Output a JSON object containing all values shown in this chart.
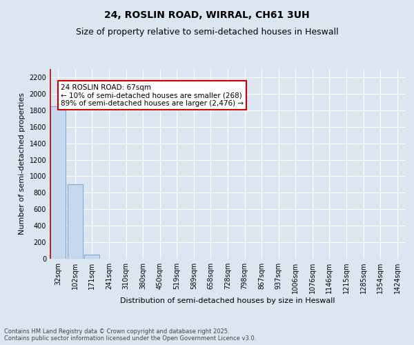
{
  "title_line1": "24, ROSLIN ROAD, WIRRAL, CH61 3UH",
  "title_line2": "Size of property relative to semi-detached houses in Heswall",
  "xlabel": "Distribution of semi-detached houses by size in Heswall",
  "ylabel": "Number of semi-detached properties",
  "categories": [
    "32sqm",
    "102sqm",
    "171sqm",
    "241sqm",
    "310sqm",
    "380sqm",
    "450sqm",
    "519sqm",
    "589sqm",
    "658sqm",
    "728sqm",
    "798sqm",
    "867sqm",
    "937sqm",
    "1006sqm",
    "1076sqm",
    "1146sqm",
    "1215sqm",
    "1285sqm",
    "1354sqm",
    "1424sqm"
  ],
  "values": [
    1850,
    900,
    50,
    0,
    0,
    0,
    0,
    0,
    0,
    0,
    0,
    0,
    0,
    0,
    0,
    0,
    0,
    0,
    0,
    0,
    0
  ],
  "bar_color": "#c5d8ee",
  "bar_edge_color": "#7aadd4",
  "highlight_line_color": "#cc0000",
  "annotation_text": "24 ROSLIN ROAD: 67sqm\n← 10% of semi-detached houses are smaller (268)\n89% of semi-detached houses are larger (2,476) →",
  "annotation_box_color": "#ffffff",
  "annotation_box_edge_color": "#cc0000",
  "ylim": [
    0,
    2300
  ],
  "yticks": [
    0,
    200,
    400,
    600,
    800,
    1000,
    1200,
    1400,
    1600,
    1800,
    2000,
    2200
  ],
  "background_color": "#dce6f1",
  "plot_bg_color": "#dce6f1",
  "grid_color": "#ffffff",
  "footer_text": "Contains HM Land Registry data © Crown copyright and database right 2025.\nContains public sector information licensed under the Open Government Licence v3.0.",
  "title_fontsize": 10,
  "subtitle_fontsize": 9,
  "tick_fontsize": 7,
  "ylabel_fontsize": 8,
  "xlabel_fontsize": 8,
  "annotation_fontsize": 7.5,
  "footer_fontsize": 6
}
